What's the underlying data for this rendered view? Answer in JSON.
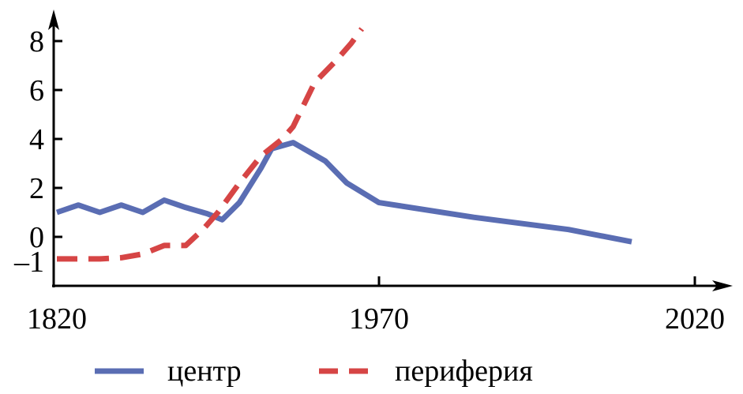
{
  "chart_data": {
    "type": "line",
    "title": "",
    "xlabel": "",
    "ylabel": "",
    "legend_position": "bottom",
    "grid": false,
    "x_ticks": [
      {
        "value": 1820,
        "label": "1820"
      },
      {
        "value": 1970,
        "label": "1970"
      },
      {
        "value": 2020,
        "label": "2020"
      }
    ],
    "y_ticks": [
      {
        "value": -1,
        "label": "–1"
      },
      {
        "value": 0,
        "label": "0"
      },
      {
        "value": 2,
        "label": "2"
      },
      {
        "value": 4,
        "label": "4"
      },
      {
        "value": 6,
        "label": "6"
      },
      {
        "value": 8,
        "label": "8"
      }
    ],
    "series": [
      {
        "name": "центр",
        "color": "#5a6db3",
        "style": "solid",
        "points": [
          [
            1820,
            1.0
          ],
          [
            1830,
            1.3
          ],
          [
            1840,
            1.0
          ],
          [
            1850,
            1.3
          ],
          [
            1860,
            1.0
          ],
          [
            1870,
            1.5
          ],
          [
            1880,
            1.2
          ],
          [
            1890,
            0.95
          ],
          [
            1897,
            0.7
          ],
          [
            1905,
            1.4
          ],
          [
            1915,
            2.8
          ],
          [
            1920,
            3.6
          ],
          [
            1930,
            3.85
          ],
          [
            1945,
            3.1
          ],
          [
            1955,
            2.2
          ],
          [
            1970,
            1.4
          ],
          [
            1985,
            0.8
          ],
          [
            2000,
            0.3
          ],
          [
            2010,
            -0.2
          ]
        ]
      },
      {
        "name": "периферия",
        "color": "#d64545",
        "style": "dashed",
        "points": [
          [
            1820,
            -0.9
          ],
          [
            1830,
            -0.9
          ],
          [
            1840,
            -0.9
          ],
          [
            1850,
            -0.85
          ],
          [
            1860,
            -0.7
          ],
          [
            1870,
            -0.35
          ],
          [
            1880,
            -0.35
          ],
          [
            1888,
            0.3
          ],
          [
            1895,
            1.0
          ],
          [
            1905,
            2.2
          ],
          [
            1915,
            3.3
          ],
          [
            1925,
            4.0
          ],
          [
            1930,
            4.5
          ],
          [
            1940,
            6.3
          ],
          [
            1950,
            7.2
          ],
          [
            1957,
            7.9
          ],
          [
            1962,
            8.5
          ]
        ]
      }
    ]
  }
}
